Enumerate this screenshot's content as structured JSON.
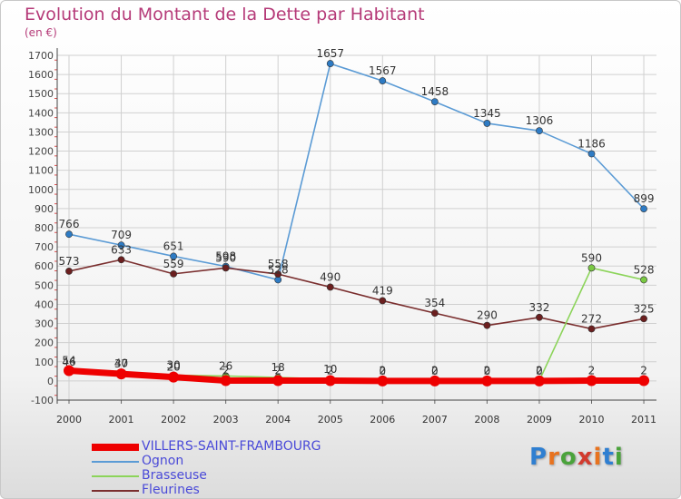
{
  "header": {
    "title": "Evolution du Montant de la Dette par Habitant",
    "unit": "(en €)"
  },
  "colors": {
    "title": "#b53a78",
    "legend_text": "#4a4ad8",
    "grid": "#d0d0d0"
  },
  "chart_data": {
    "type": "line",
    "x": [
      "2000",
      "2001",
      "2002",
      "2003",
      "2004",
      "2005",
      "2006",
      "2007",
      "2008",
      "2009",
      "2010",
      "2011"
    ],
    "ylim": [
      -100,
      1700
    ],
    "yticks": [
      -100,
      0,
      100,
      200,
      300,
      400,
      500,
      600,
      700,
      800,
      900,
      1000,
      1100,
      1200,
      1300,
      1400,
      1500,
      1600,
      1700
    ],
    "grid": true,
    "legend_position": "bottom-left",
    "series": [
      {
        "name": "Ognon",
        "color": "#5b9bd5",
        "marker": "#2e7bc4",
        "values": [
          766,
          709,
          651,
          598,
          528,
          1657,
          1567,
          1458,
          1345,
          1306,
          1186,
          899
        ],
        "labels": [
          "766",
          "709",
          "651",
          "598",
          "528",
          "1657",
          "1567",
          "1458",
          "1345",
          "1306",
          "1186",
          "899"
        ]
      },
      {
        "name": "Fleurines",
        "color": "#7a2e2e",
        "marker": "#6b1f1f",
        "values": [
          573,
          633,
          559,
          590,
          558,
          490,
          419,
          354,
          290,
          332,
          272,
          325
        ],
        "labels": [
          "573",
          "633",
          "559",
          "590",
          "558",
          "490",
          "419",
          "354",
          "290",
          "332",
          "272",
          "325"
        ]
      },
      {
        "name": "Brasseuse",
        "color": "#8cd45a",
        "marker": "#7ac943",
        "values": [
          46,
          40,
          30,
          26,
          18,
          10,
          2,
          2,
          2,
          2,
          590,
          528
        ],
        "labels": [
          "46",
          "40",
          "30",
          "26",
          "18",
          "10",
          "2",
          "2",
          "2",
          "2",
          "590",
          "528"
        ]
      },
      {
        "name": "VILLERS-SAINT-FRAMBOURG",
        "color": "#ee0000",
        "marker": "#ee0000",
        "values": [
          54,
          37,
          20,
          2,
          2,
          2,
          0,
          0,
          0,
          0,
          2,
          2
        ],
        "labels": [
          "54",
          "37",
          "20",
          "2",
          "2",
          "2",
          "0",
          "0",
          "0",
          "0",
          "2",
          "2"
        ]
      }
    ],
    "legend_order": [
      "VILLERS-SAINT-FRAMBOURG",
      "Ognon",
      "Brasseuse",
      "Fleurines"
    ]
  },
  "watermark": {
    "text": "Proxiti",
    "letter_colors": [
      "#2f7fd1",
      "#e8731f",
      "#4aa33b",
      "#d23b2f",
      "#e8731f",
      "#2f7fd1",
      "#4aa33b"
    ]
  }
}
